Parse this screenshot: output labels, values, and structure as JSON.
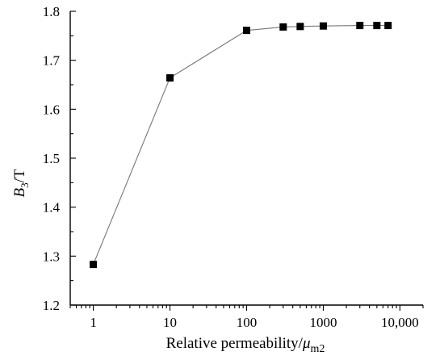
{
  "chart_data": {
    "type": "line",
    "xscale": "log",
    "xlim": [
      0.5,
      20000
    ],
    "ylim": [
      1.2,
      1.8
    ],
    "xticks": [
      1,
      10,
      100,
      1000,
      10000
    ],
    "xtick_labels": [
      "1",
      "10",
      "100",
      "1000",
      "10,000"
    ],
    "yticks": [
      1.2,
      1.3,
      1.4,
      1.5,
      1.6,
      1.7,
      1.8
    ],
    "ytick_labels": [
      "1.2",
      "1.3",
      "1.4",
      "1.5",
      "1.6",
      "1.7",
      "1.8"
    ],
    "xlabel": "Relative permeability/μm2",
    "ylabel": "B3/T",
    "xlabel_parts": {
      "text": "Relative permeability/",
      "symbol": "μ",
      "subscript": "m2"
    },
    "ylabel_parts": {
      "symbol": "B",
      "subscript": "3",
      "unit": "/T"
    },
    "grid": false,
    "legend": "none",
    "marker": "square",
    "series": [
      {
        "x": [
          1,
          10,
          100,
          300,
          500,
          1000,
          3000,
          5000,
          7000
        ],
        "y": [
          1.283,
          1.664,
          1.761,
          1.768,
          1.769,
          1.77,
          1.771,
          1.771,
          1.771
        ]
      }
    ],
    "colors": {
      "line": "#777777",
      "marker": "#000000",
      "axis": "#000000"
    }
  }
}
